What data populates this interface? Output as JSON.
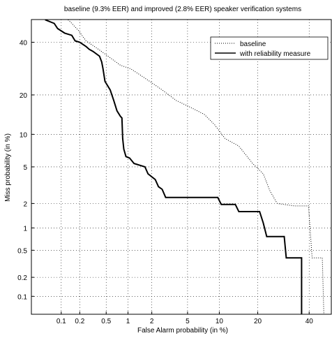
{
  "chart_data": {
    "type": "det",
    "title": "baseline (9.3% EER) and improved (2.8% EER) speaker verification systems",
    "x_label": "False Alarm probability (in %)",
    "y_label": "Miss probability (in %)",
    "xlim": [
      0.03,
      50
    ],
    "ylim": [
      0.05,
      50
    ],
    "xticks": [
      0.1,
      0.2,
      0.5,
      1,
      2,
      5,
      10,
      20,
      40
    ],
    "yticks": [
      0.1,
      0.2,
      0.5,
      1,
      2,
      5,
      10,
      20,
      40
    ],
    "scale": "probit",
    "grid": true,
    "legend": "upper right",
    "series": [
      {
        "name": "baseline",
        "color": "#000000",
        "style": "dotted",
        "x": [
          0.13,
          0.149,
          0.19,
          0.25,
          0.36,
          0.5,
          0.79,
          1.09,
          1.49,
          2.0,
          2.65,
          3.8,
          5.3,
          7.3,
          9.1,
          11.2,
          14.5,
          18.4,
          21.8,
          24.2,
          26.8,
          33.7,
          39.7,
          41.3,
          45.9,
          46.6
        ],
        "values": [
          49.9,
          48.3,
          45.2,
          40.6,
          37.6,
          34.7,
          30.5,
          29.1,
          26.5,
          24,
          21.6,
          18.3,
          16.4,
          14.5,
          12,
          9.2,
          7.9,
          5.4,
          4.25,
          2.76,
          2.0,
          1.87,
          1.87,
          0.39,
          0.39,
          0.05
        ]
      },
      {
        "name": "with reliability measure",
        "color": "#000000",
        "style": "solid",
        "x": [
          0.053,
          0.076,
          0.087,
          0.114,
          0.149,
          0.169,
          0.2,
          0.25,
          0.28,
          0.32,
          0.4,
          0.43,
          0.45,
          0.48,
          0.57,
          0.64,
          0.71,
          0.79,
          0.83,
          0.85,
          0.88,
          0.94,
          1.05,
          1.2,
          1.65,
          1.8,
          2.2,
          2.4,
          2.65,
          2.9,
          9.7,
          10.4,
          13.6,
          14.5,
          20.6,
          21.8,
          23,
          29.5,
          30.3,
          36.7,
          36.7
        ],
        "values": [
          49.9,
          48.3,
          46,
          44,
          43,
          40.6,
          40,
          38.2,
          37,
          36.1,
          34.1,
          31.8,
          29.1,
          24.5,
          21.6,
          18.3,
          15.4,
          14,
          13.6,
          9.2,
          7.4,
          6.3,
          6.1,
          5.4,
          5,
          4.25,
          3.7,
          3.1,
          2.9,
          2.35,
          2.35,
          1.95,
          1.95,
          1.6,
          1.6,
          1.16,
          0.77,
          0.77,
          0.39,
          0.39,
          0.05
        ]
      }
    ]
  }
}
